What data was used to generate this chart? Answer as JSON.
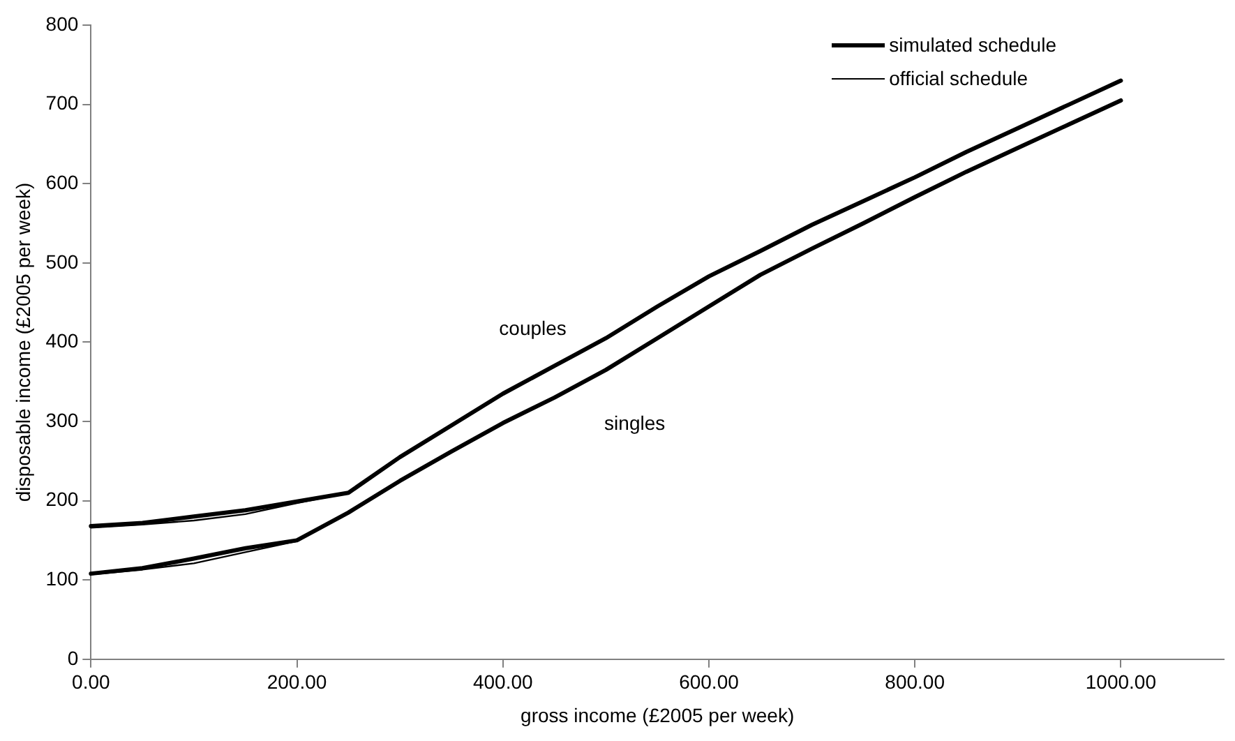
{
  "chart_data": {
    "type": "line",
    "xlabel": "gross income (£2005 per week)",
    "ylabel": "disposable income (£2005 per week)",
    "x": [
      0,
      50,
      100,
      150,
      200,
      250,
      300,
      350,
      400,
      450,
      500,
      550,
      600,
      650,
      700,
      750,
      800,
      850,
      900,
      950,
      1000
    ],
    "series": [
      {
        "name": "simulated schedule",
        "color": "#000000",
        "values": [
          168,
          172,
          180,
          188,
          199,
          210,
          255,
          295,
          335,
          370,
          405,
          445,
          483,
          515,
          548,
          578,
          608,
          640,
          670,
          700,
          730
        ]
      },
      {
        "name": "official schedule",
        "color": "#000000",
        "values": [
          166,
          170,
          175,
          183,
          197,
          210,
          255,
          295,
          335,
          370,
          405,
          445,
          483,
          515,
          548,
          578,
          608,
          640,
          670,
          700,
          730
        ]
      },
      {
        "color": "#000000",
        "values": [
          108,
          115,
          127,
          140,
          150,
          185,
          225,
          262,
          298,
          330,
          365,
          405,
          445,
          485,
          518,
          550,
          583,
          615,
          645,
          675,
          705
        ]
      },
      {
        "color": "#000000",
        "values": [
          107,
          113,
          121,
          135,
          149,
          185,
          225,
          262,
          298,
          330,
          365,
          405,
          445,
          485,
          518,
          550,
          583,
          615,
          645,
          675,
          705
        ]
      }
    ],
    "annotations": [
      "couples",
      "singles"
    ],
    "xlim": [
      0,
      1100
    ],
    "xticks": [
      {
        "value": 0,
        "label": "0.00"
      },
      {
        "value": 200,
        "label": "200.00"
      },
      {
        "value": 400,
        "label": "400.00"
      },
      {
        "value": 600,
        "label": "600.00"
      },
      {
        "value": 800,
        "label": "800.00"
      },
      {
        "value": 1000,
        "label": "1000.00"
      }
    ],
    "ylim": [
      0,
      800
    ],
    "yticks": [
      0,
      100,
      200,
      300,
      400,
      500,
      600,
      700,
      800
    ],
    "grid": false,
    "legend": "top right",
    "marker": "none",
    "line_style": "solid"
  }
}
